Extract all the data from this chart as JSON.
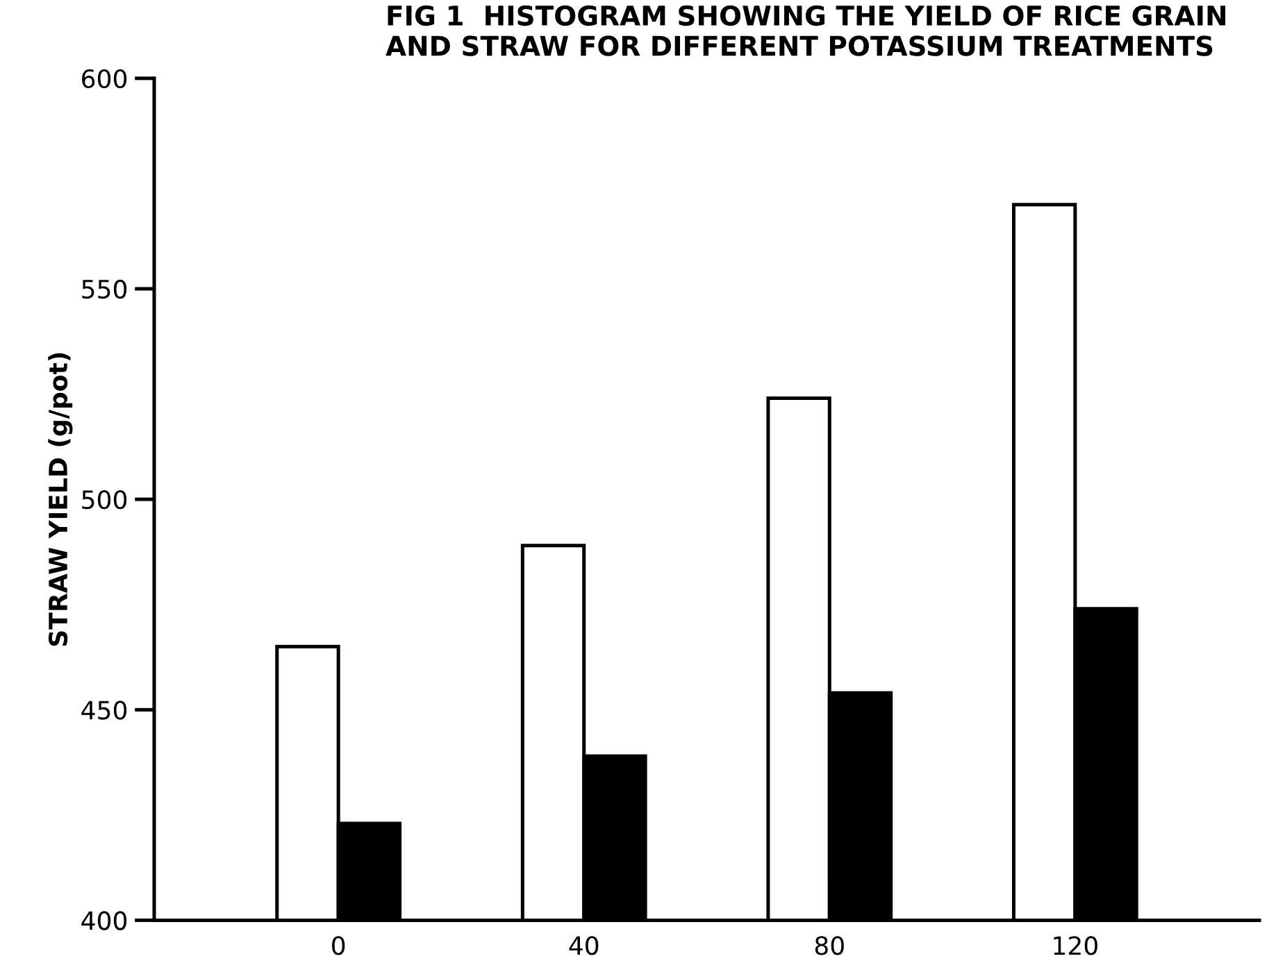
{
  "chart_data": {
    "type": "bar",
    "title": "FIG 1  HISTOGRAM SHOWING THE YIELD OF RICE GRAIN\nAND STRAW FOR DIFFERENT POTASSIUM TREATMENTS",
    "ylabel": "STRAW YIELD (g/pot)",
    "categories": [
      "0",
      "40",
      "80",
      "120"
    ],
    "series": [
      {
        "color": "#ffffff",
        "values": [
          465,
          489,
          524,
          570
        ]
      },
      {
        "color": "#000000",
        "values": [
          423,
          439,
          454,
          474
        ]
      }
    ],
    "ylim": [
      400,
      600
    ],
    "yticks": [
      400,
      450,
      500,
      550,
      600
    ],
    "grid": false,
    "legend": false
  }
}
